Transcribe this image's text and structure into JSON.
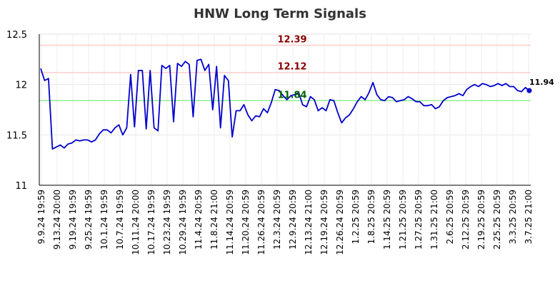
{
  "chart_data": {
    "type": "line",
    "title": "HNW Long Term Signals",
    "xlabel": "",
    "ylabel": "",
    "ylim": [
      11,
      12.5
    ],
    "yticks": [
      "11",
      "11.5",
      "12",
      "12.5"
    ],
    "xticks": [
      "9.9.24 19:59",
      "9.13.24 20:00",
      "9.19.24 19:59",
      "9.25.24 19:59",
      "10.1.24 19:59",
      "10.7.24 19:59",
      "10.11.24 20:00",
      "10.17.24 19:59",
      "10.23.24 19:59",
      "10.29.24 19:59",
      "11.4.24 20:59",
      "11.8.24 21:00",
      "11.14.24 20:59",
      "11.20.24 20:59",
      "11.26.24 20:59",
      "12.3.24 20:59",
      "12.9.24 20:59",
      "12.13.24 21:00",
      "12.19.24 20:59",
      "12.26.24 20:59",
      "1.2.25 20:59",
      "1.8.25 20:59",
      "1.14.25 20:59",
      "1.21.25 20:59",
      "1.27.25 20:59",
      "1.31.25 21:00",
      "2.6.25 20:59",
      "2.12.25 20:59",
      "2.19.25 20:59",
      "2.25.25 20:59",
      "3.3.25 20:59",
      "3.7.25 21:00"
    ],
    "grid": true,
    "levels": [
      {
        "value": 12.39,
        "label": "12.39",
        "line_color": "#ffcccc",
        "text_color": "#8b0000"
      },
      {
        "value": 12.12,
        "label": "12.12",
        "line_color": "#ffcccc",
        "text_color": "#8b0000"
      },
      {
        "value": 11.84,
        "label": "11.84",
        "line_color": "#90ee90",
        "text_color": "#006400"
      }
    ],
    "last_label": "11.94",
    "series": [
      {
        "color": "#0000cc",
        "values": [
          12.16,
          12.04,
          12.06,
          11.36,
          11.38,
          11.4,
          11.37,
          11.41,
          11.42,
          11.45,
          11.44,
          11.45,
          11.45,
          11.43,
          11.45,
          11.51,
          11.55,
          11.55,
          11.52,
          11.57,
          11.6,
          11.5,
          11.57,
          12.1,
          11.58,
          12.14,
          12.14,
          11.56,
          12.14,
          11.57,
          11.54,
          12.19,
          12.16,
          12.19,
          11.63,
          12.21,
          12.18,
          12.23,
          12.2,
          11.68,
          12.24,
          12.25,
          12.14,
          12.2,
          11.75,
          12.18,
          11.57,
          12.09,
          12.04,
          11.48,
          11.74,
          11.74,
          11.8,
          11.7,
          11.64,
          11.69,
          11.68,
          11.76,
          11.72,
          11.82,
          11.95,
          11.94,
          11.89,
          11.85,
          11.89,
          11.9,
          11.92,
          11.8,
          11.78,
          11.88,
          11.85,
          11.74,
          11.77,
          11.74,
          11.85,
          11.84,
          11.72,
          11.62,
          11.67,
          11.7,
          11.76,
          11.83,
          11.88,
          11.85,
          11.92,
          12.02,
          11.9,
          11.85,
          11.84,
          11.88,
          11.87,
          11.83,
          11.84,
          11.85,
          11.88,
          11.86,
          11.83,
          11.83,
          11.79,
          11.79,
          11.8,
          11.76,
          11.78,
          11.84,
          11.87,
          11.88,
          11.89,
          11.91,
          11.89,
          11.95,
          11.98,
          12.0,
          11.98,
          12.01,
          12.0,
          11.98,
          11.99,
          12.01,
          11.99,
          12.01,
          11.98,
          11.98,
          11.94,
          11.93,
          11.97,
          11.94
        ]
      }
    ]
  }
}
